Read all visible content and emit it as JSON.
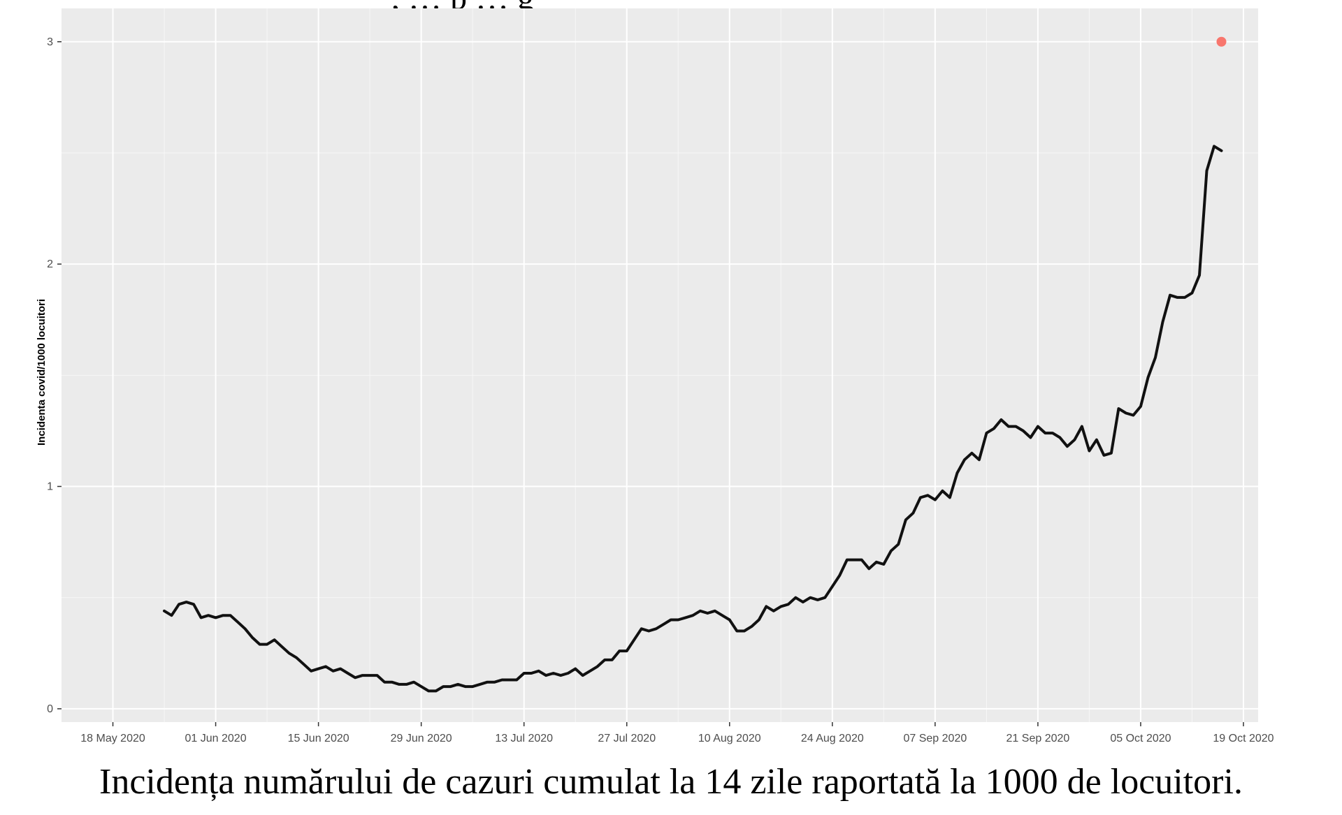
{
  "top_fragment": ", … p … g",
  "caption": "Incidența numărului de cazuri cumulat la 14 zile raportată la 1000 de locuitori.",
  "chart_data": {
    "type": "line",
    "ylabel": "Incidenta covid/1000 locuitori",
    "xlabel": "",
    "title": "",
    "x_ticks": [
      "18 May 2020",
      "01 Jun 2020",
      "15 Jun 2020",
      "29 Jun 2020",
      "13 Jul 2020",
      "27 Jul 2020",
      "10 Aug 2020",
      "24 Aug 2020",
      "07 Sep 2020",
      "21 Sep 2020",
      "05 Oct 2020",
      "19 Oct 2020"
    ],
    "y_ticks": [
      0,
      1,
      2,
      3
    ],
    "xlim": [
      "2020-05-11",
      "2020-10-21"
    ],
    "ylim": [
      -0.06,
      3.15
    ],
    "grid": true,
    "background": "#ebebeb",
    "line_color": "#111111",
    "point_color": "#f8766d",
    "series": [
      {
        "points": [
          [
            "2020-05-25",
            0.44
          ],
          [
            "2020-05-26",
            0.42
          ],
          [
            "2020-05-27",
            0.47
          ],
          [
            "2020-05-28",
            0.48
          ],
          [
            "2020-05-29",
            0.47
          ],
          [
            "2020-05-30",
            0.41
          ],
          [
            "2020-05-31",
            0.42
          ],
          [
            "2020-06-01",
            0.41
          ],
          [
            "2020-06-02",
            0.42
          ],
          [
            "2020-06-03",
            0.42
          ],
          [
            "2020-06-04",
            0.39
          ],
          [
            "2020-06-05",
            0.36
          ],
          [
            "2020-06-06",
            0.32
          ],
          [
            "2020-06-07",
            0.29
          ],
          [
            "2020-06-08",
            0.29
          ],
          [
            "2020-06-09",
            0.31
          ],
          [
            "2020-06-10",
            0.28
          ],
          [
            "2020-06-11",
            0.25
          ],
          [
            "2020-06-12",
            0.23
          ],
          [
            "2020-06-13",
            0.2
          ],
          [
            "2020-06-14",
            0.17
          ],
          [
            "2020-06-15",
            0.18
          ],
          [
            "2020-06-16",
            0.19
          ],
          [
            "2020-06-17",
            0.17
          ],
          [
            "2020-06-18",
            0.18
          ],
          [
            "2020-06-19",
            0.16
          ],
          [
            "2020-06-20",
            0.14
          ],
          [
            "2020-06-21",
            0.15
          ],
          [
            "2020-06-22",
            0.15
          ],
          [
            "2020-06-23",
            0.15
          ],
          [
            "2020-06-24",
            0.12
          ],
          [
            "2020-06-25",
            0.12
          ],
          [
            "2020-06-26",
            0.11
          ],
          [
            "2020-06-27",
            0.11
          ],
          [
            "2020-06-28",
            0.12
          ],
          [
            "2020-06-29",
            0.1
          ],
          [
            "2020-06-30",
            0.08
          ],
          [
            "2020-07-01",
            0.08
          ],
          [
            "2020-07-02",
            0.1
          ],
          [
            "2020-07-03",
            0.1
          ],
          [
            "2020-07-04",
            0.11
          ],
          [
            "2020-07-05",
            0.1
          ],
          [
            "2020-07-06",
            0.1
          ],
          [
            "2020-07-07",
            0.11
          ],
          [
            "2020-07-08",
            0.12
          ],
          [
            "2020-07-09",
            0.12
          ],
          [
            "2020-07-10",
            0.13
          ],
          [
            "2020-07-11",
            0.13
          ],
          [
            "2020-07-12",
            0.13
          ],
          [
            "2020-07-13",
            0.16
          ],
          [
            "2020-07-14",
            0.16
          ],
          [
            "2020-07-15",
            0.17
          ],
          [
            "2020-07-16",
            0.15
          ],
          [
            "2020-07-17",
            0.16
          ],
          [
            "2020-07-18",
            0.15
          ],
          [
            "2020-07-19",
            0.16
          ],
          [
            "2020-07-20",
            0.18
          ],
          [
            "2020-07-21",
            0.15
          ],
          [
            "2020-07-22",
            0.17
          ],
          [
            "2020-07-23",
            0.19
          ],
          [
            "2020-07-24",
            0.22
          ],
          [
            "2020-07-25",
            0.22
          ],
          [
            "2020-07-26",
            0.26
          ],
          [
            "2020-07-27",
            0.26
          ],
          [
            "2020-07-28",
            0.31
          ],
          [
            "2020-07-29",
            0.36
          ],
          [
            "2020-07-30",
            0.35
          ],
          [
            "2020-07-31",
            0.36
          ],
          [
            "2020-08-01",
            0.38
          ],
          [
            "2020-08-02",
            0.4
          ],
          [
            "2020-08-03",
            0.4
          ],
          [
            "2020-08-04",
            0.41
          ],
          [
            "2020-08-05",
            0.42
          ],
          [
            "2020-08-06",
            0.44
          ],
          [
            "2020-08-07",
            0.43
          ],
          [
            "2020-08-08",
            0.44
          ],
          [
            "2020-08-09",
            0.42
          ],
          [
            "2020-08-10",
            0.4
          ],
          [
            "2020-08-11",
            0.35
          ],
          [
            "2020-08-12",
            0.35
          ],
          [
            "2020-08-13",
            0.37
          ],
          [
            "2020-08-14",
            0.4
          ],
          [
            "2020-08-15",
            0.46
          ],
          [
            "2020-08-16",
            0.44
          ],
          [
            "2020-08-17",
            0.46
          ],
          [
            "2020-08-18",
            0.47
          ],
          [
            "2020-08-19",
            0.5
          ],
          [
            "2020-08-20",
            0.48
          ],
          [
            "2020-08-21",
            0.5
          ],
          [
            "2020-08-22",
            0.49
          ],
          [
            "2020-08-23",
            0.5
          ],
          [
            "2020-08-24",
            0.55
          ],
          [
            "2020-08-25",
            0.6
          ],
          [
            "2020-08-26",
            0.67
          ],
          [
            "2020-08-27",
            0.67
          ],
          [
            "2020-08-28",
            0.67
          ],
          [
            "2020-08-29",
            0.63
          ],
          [
            "2020-08-30",
            0.66
          ],
          [
            "2020-08-31",
            0.65
          ],
          [
            "2020-09-01",
            0.71
          ],
          [
            "2020-09-02",
            0.74
          ],
          [
            "2020-09-03",
            0.85
          ],
          [
            "2020-09-04",
            0.88
          ],
          [
            "2020-09-05",
            0.95
          ],
          [
            "2020-09-06",
            0.96
          ],
          [
            "2020-09-07",
            0.94
          ],
          [
            "2020-09-08",
            0.98
          ],
          [
            "2020-09-09",
            0.95
          ],
          [
            "2020-09-10",
            1.06
          ],
          [
            "2020-09-11",
            1.12
          ],
          [
            "2020-09-12",
            1.15
          ],
          [
            "2020-09-13",
            1.12
          ],
          [
            "2020-09-14",
            1.24
          ],
          [
            "2020-09-15",
            1.26
          ],
          [
            "2020-09-16",
            1.3
          ],
          [
            "2020-09-17",
            1.27
          ],
          [
            "2020-09-18",
            1.27
          ],
          [
            "2020-09-19",
            1.25
          ],
          [
            "2020-09-20",
            1.22
          ],
          [
            "2020-09-21",
            1.27
          ],
          [
            "2020-09-22",
            1.24
          ],
          [
            "2020-09-23",
            1.24
          ],
          [
            "2020-09-24",
            1.22
          ],
          [
            "2020-09-25",
            1.18
          ],
          [
            "2020-09-26",
            1.21
          ],
          [
            "2020-09-27",
            1.27
          ],
          [
            "2020-09-28",
            1.16
          ],
          [
            "2020-09-29",
            1.21
          ],
          [
            "2020-09-30",
            1.14
          ],
          [
            "2020-10-01",
            1.15
          ],
          [
            "2020-10-02",
            1.35
          ],
          [
            "2020-10-03",
            1.33
          ],
          [
            "2020-10-04",
            1.32
          ],
          [
            "2020-10-05",
            1.36
          ],
          [
            "2020-10-06",
            1.49
          ],
          [
            "2020-10-07",
            1.58
          ],
          [
            "2020-10-08",
            1.74
          ],
          [
            "2020-10-09",
            1.86
          ],
          [
            "2020-10-10",
            1.85
          ],
          [
            "2020-10-11",
            1.85
          ],
          [
            "2020-10-12",
            1.87
          ],
          [
            "2020-10-13",
            1.95
          ],
          [
            "2020-10-14",
            2.42
          ],
          [
            "2020-10-15",
            2.53
          ],
          [
            "2020-10-16",
            2.51
          ]
        ]
      }
    ],
    "highlight_point": [
      "2020-10-16",
      3.0
    ]
  }
}
